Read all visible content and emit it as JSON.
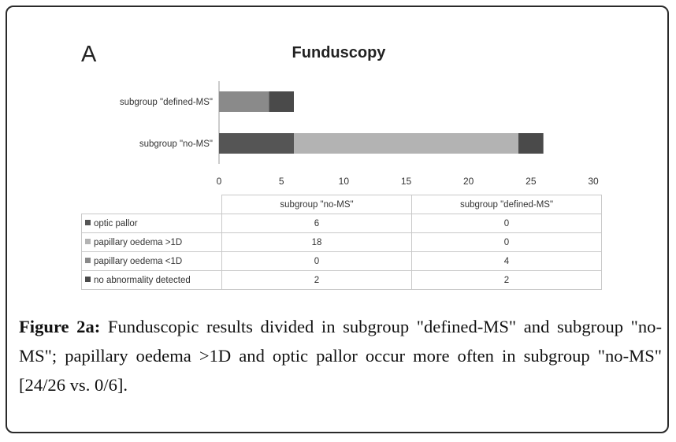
{
  "panel_label": "A",
  "caption": {
    "lead": "Figure 2a:",
    "text": " Funduscopic results divided in subgroup \"defined-MS\" and subgroup \"no-MS\"; papillary oedema >1D and optic pallor occur more often in subgroup \"no-MS\" [24/26 vs. 0/6]."
  },
  "chart_data": {
    "type": "bar",
    "orientation": "horizontal",
    "stacked": true,
    "title": "Funduscopy",
    "categories": [
      "subgroup \"defined-MS\"",
      "subgroup \"no-MS\""
    ],
    "xlim": [
      0,
      30
    ],
    "xticks": [
      "0",
      "5",
      "10",
      "15",
      "20",
      "25",
      "30"
    ],
    "series": [
      {
        "name": "optic pallor",
        "values": [
          0,
          6
        ],
        "color": "#555555"
      },
      {
        "name": "papillary oedema >1D",
        "values": [
          0,
          18
        ],
        "color": "#b3b3b3"
      },
      {
        "name": "papillary oedema <1D",
        "values": [
          4,
          0
        ],
        "color": "#8a8a8a"
      },
      {
        "name": "no abnormality detected",
        "values": [
          2,
          2
        ],
        "color": "#4a4a4a"
      }
    ],
    "data_table": {
      "columns": [
        "subgroup \"no-MS\"",
        "subgroup \"defined-MS\""
      ],
      "rows": [
        {
          "label": "optic pallor",
          "values": [
            "6",
            "0"
          ]
        },
        {
          "label": "papillary oedema >1D",
          "values": [
            "18",
            "0"
          ]
        },
        {
          "label": "papillary oedema <1D",
          "values": [
            "0",
            "4"
          ]
        },
        {
          "label": "no abnormality detected",
          "values": [
            "2",
            "2"
          ]
        }
      ]
    },
    "grid": false,
    "legend": "data table"
  }
}
